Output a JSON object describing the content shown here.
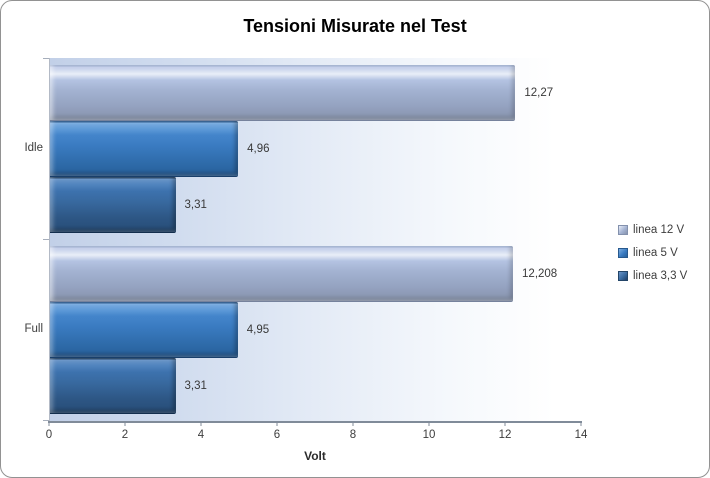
{
  "chart_data": {
    "type": "bar",
    "orientation": "horizontal",
    "title": "Tensioni Misurate nel Test",
    "categories": [
      "Idle",
      "Full"
    ],
    "series": [
      {
        "name": "linea 12 V",
        "color": "#a4b3d2",
        "values": [
          12.27,
          12.208
        ],
        "labels": [
          "12,27",
          "12,208"
        ]
      },
      {
        "name": "linea 5 V",
        "color": "#3a7bc1",
        "values": [
          4.96,
          4.95
        ],
        "labels": [
          "4,96",
          "4,95"
        ]
      },
      {
        "name": "linea 3,3 V",
        "color": "#38699f",
        "values": [
          3.31,
          3.31
        ],
        "labels": [
          "3,31",
          "3,31"
        ]
      }
    ],
    "xlabel": "Volt",
    "xlim": [
      0,
      14
    ],
    "xticks": [
      "0",
      "2",
      "4",
      "6",
      "8",
      "10",
      "12",
      "14"
    ],
    "grid": false,
    "legend_position": "right"
  }
}
